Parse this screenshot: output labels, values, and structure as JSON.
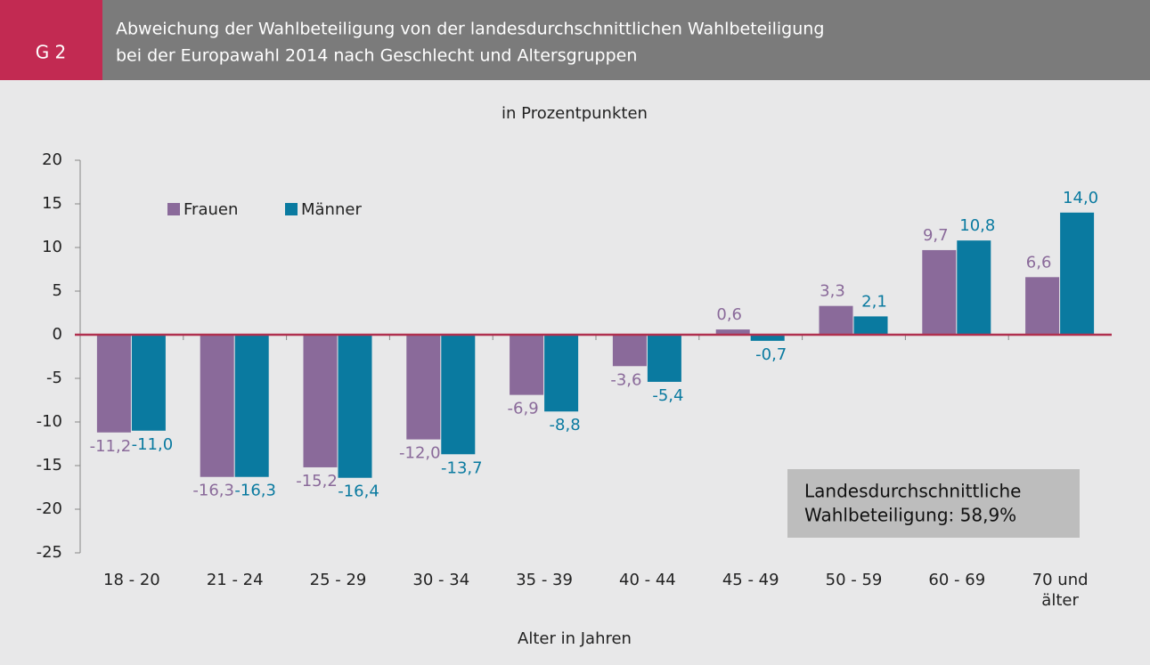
{
  "chart_data": {
    "type": "bar",
    "badge": "G 2",
    "title": [
      "Abweichung der Wahlbeteiligung von der landesdurchschnittlichen Wahlbeteiligung",
      "bei der Europawahl 2014 nach Geschlecht und Altersgruppen"
    ],
    "subtitle": "in Prozentpunkten",
    "xlabel": "Alter in Jahren",
    "categories": [
      "18 - 20",
      "21 - 24",
      "25 - 29",
      "30 - 34",
      "35 - 39",
      "40 - 44",
      "45 - 49",
      "50 - 59",
      "60 - 69",
      "70 und älter"
    ],
    "series": [
      {
        "name": "Frauen",
        "color": "#8a6a9a",
        "values": [
          -11.2,
          -16.3,
          -15.2,
          -12.0,
          -6.9,
          -3.6,
          0.6,
          3.3,
          9.7,
          6.6
        ],
        "value_labels": [
          "-11,2",
          "-16,3",
          "-15,2",
          "-12,0",
          "-6,9",
          "-3,6",
          "0,6",
          "3,3",
          "9,7",
          "6,6"
        ]
      },
      {
        "name": "Männer",
        "color": "#0a7aa0",
        "values": [
          -11.0,
          -16.3,
          -16.4,
          -13.7,
          -8.8,
          -5.4,
          -0.7,
          2.1,
          10.8,
          14.0
        ],
        "value_labels": [
          "-11,0",
          "-16,3",
          "-16,4",
          "-13,7",
          "-8,8",
          "-5,4",
          "-0,7",
          "2,1",
          "10,8",
          "14,0"
        ]
      }
    ],
    "ylim": [
      -25,
      20
    ],
    "yticks": [
      -25,
      -20,
      -15,
      -10,
      -5,
      0,
      5,
      10,
      15,
      20
    ],
    "zero_line_color": "#b0304f",
    "legend": "upper left",
    "annotation": [
      "Landesdurchschnittliche",
      "Wahlbeteiligung: 58,9%"
    ]
  }
}
